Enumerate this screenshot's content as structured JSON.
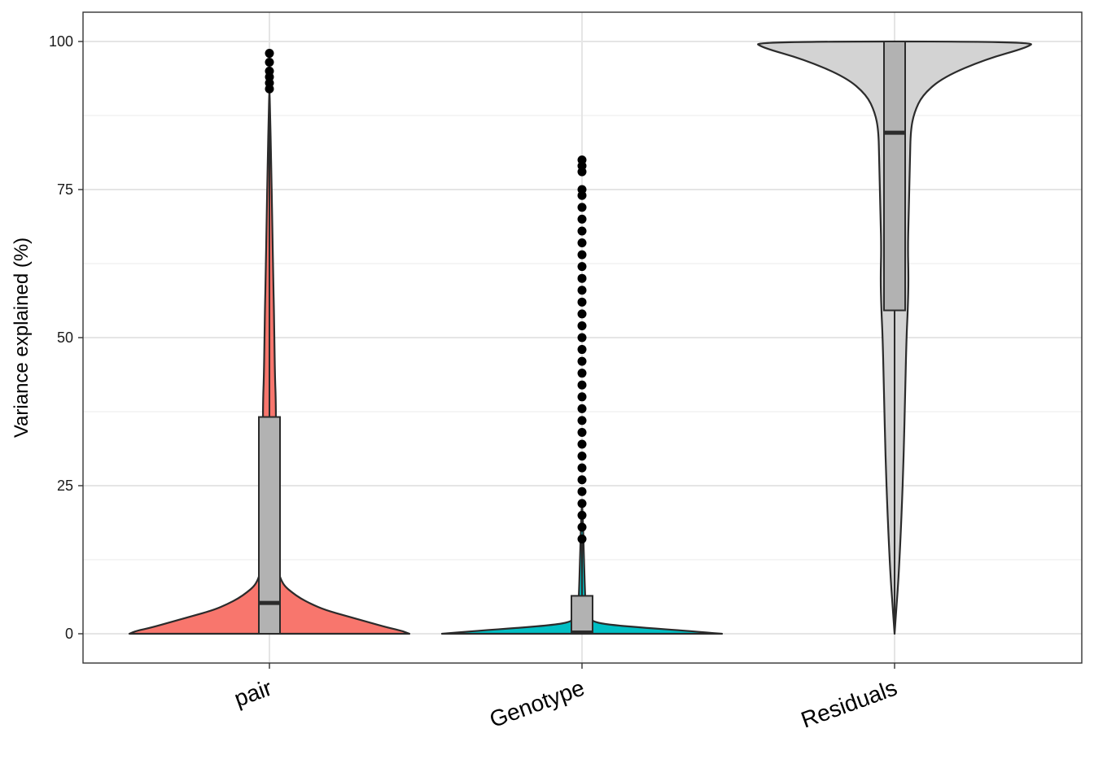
{
  "chart_data": {
    "type": "violin",
    "title": "",
    "xlabel": "",
    "ylabel": "Variance explained (%)",
    "ylim": [
      0,
      100
    ],
    "yticks": [
      0,
      25,
      50,
      75,
      100
    ],
    "yticks_labels": [
      "0",
      "25",
      "50",
      "75",
      "100"
    ],
    "grid": true,
    "legend": "none",
    "categories": [
      "pair",
      "Genotype",
      "Residuals"
    ],
    "series": [
      {
        "category": "pair",
        "color": "#F8766D",
        "box": {
          "q1": 0,
          "median": 5.2,
          "q3": 36.6,
          "whisker_low": 0,
          "whisker_high": 91.6
        },
        "outliers": [
          92,
          93,
          94,
          95,
          96.5,
          98
        ],
        "density": [
          [
            0,
            1.0
          ],
          [
            0.5,
            0.95
          ],
          [
            1,
            0.85
          ],
          [
            2,
            0.7
          ],
          [
            3,
            0.55
          ],
          [
            4,
            0.4
          ],
          [
            5,
            0.3
          ],
          [
            6,
            0.22
          ],
          [
            7,
            0.16
          ],
          [
            8,
            0.11
          ],
          [
            9,
            0.085
          ],
          [
            10,
            0.07
          ],
          [
            12,
            0.058
          ],
          [
            15,
            0.052
          ],
          [
            20,
            0.05
          ],
          [
            30,
            0.048
          ],
          [
            35,
            0.047
          ],
          [
            40,
            0.045
          ],
          [
            43,
            0.04
          ],
          [
            50,
            0.035
          ],
          [
            55,
            0.032
          ],
          [
            60,
            0.027
          ],
          [
            70,
            0.02
          ],
          [
            80,
            0.012
          ],
          [
            88,
            0.005
          ],
          [
            92,
            0.0
          ]
        ]
      },
      {
        "category": "Genotype",
        "color": "#00BFC4",
        "box": {
          "q1": 0,
          "median": 0.2,
          "q3": 6.4,
          "whisker_low": 0,
          "whisker_high": 15.9
        },
        "outliers": [
          16,
          18,
          20,
          22,
          24,
          26,
          28,
          30,
          32,
          34,
          36,
          38,
          40,
          42,
          44,
          46,
          48,
          50,
          52,
          54,
          56,
          58,
          60,
          62,
          64,
          66,
          68,
          70,
          72,
          74,
          75,
          78,
          79,
          80
        ],
        "density": [
          [
            0,
            1.0
          ],
          [
            0.5,
            0.75
          ],
          [
            1,
            0.45
          ],
          [
            1.5,
            0.2
          ],
          [
            2,
            0.08
          ],
          [
            3,
            0.035
          ],
          [
            5,
            0.025
          ],
          [
            8,
            0.02
          ],
          [
            12,
            0.015
          ],
          [
            16,
            0.01
          ],
          [
            20,
            0.005
          ],
          [
            22,
            0.0
          ]
        ]
      },
      {
        "category": "Residuals",
        "color": "#D3D3D3",
        "box": {
          "q1": 54.6,
          "median": 84.6,
          "q3": 100,
          "whisker_low": 0,
          "whisker_high": 100
        },
        "outliers": [],
        "density": [
          [
            0,
            0.0
          ],
          [
            5,
            0.015
          ],
          [
            10,
            0.03
          ],
          [
            20,
            0.05
          ],
          [
            30,
            0.065
          ],
          [
            40,
            0.075
          ],
          [
            50,
            0.085
          ],
          [
            55,
            0.095
          ],
          [
            60,
            0.1
          ],
          [
            65,
            0.095
          ],
          [
            70,
            0.1
          ],
          [
            80,
            0.11
          ],
          [
            85,
            0.115
          ],
          [
            88,
            0.14
          ],
          [
            91,
            0.2
          ],
          [
            94,
            0.35
          ],
          [
            97,
            0.65
          ],
          [
            99,
            0.95
          ],
          [
            100,
            1.0
          ]
        ]
      }
    ]
  }
}
